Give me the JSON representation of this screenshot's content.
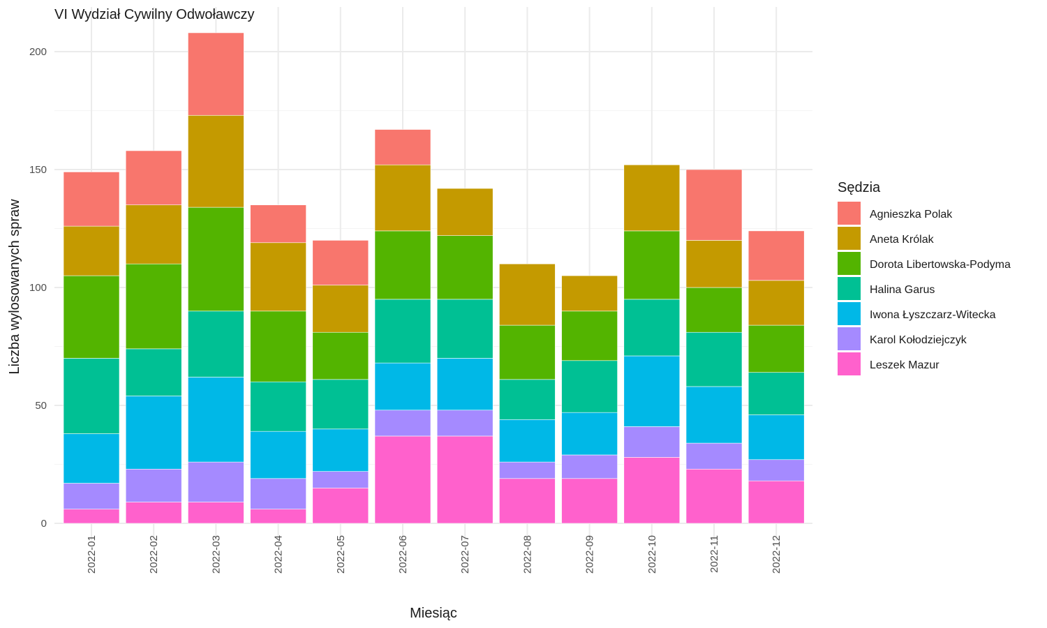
{
  "chart_data": {
    "type": "bar",
    "stacked": true,
    "title": "VI Wydział Cywilny Odwoławczy",
    "xlabel": "Miesiąc",
    "ylabel": "Liczba wylosowanych spraw",
    "ylim": [
      0,
      210
    ],
    "yticks": [
      0,
      50,
      100,
      150,
      200
    ],
    "grid": true,
    "legend_title": "Sędzia",
    "legend_position": "right",
    "categories": [
      "2022-01",
      "2022-02",
      "2022-03",
      "2022-04",
      "2022-05",
      "2022-06",
      "2022-07",
      "2022-08",
      "2022-09",
      "2022-10",
      "2022-11",
      "2022-12"
    ],
    "series": [
      {
        "name": "Leszek Mazur",
        "color": "#FF61CC",
        "values": [
          6,
          9,
          9,
          6,
          15,
          37,
          37,
          19,
          19,
          28,
          23,
          18
        ]
      },
      {
        "name": "Karol Kołodziejczyk",
        "color": "#A58AFF",
        "values": [
          11,
          14,
          17,
          13,
          7,
          11,
          11,
          7,
          10,
          13,
          11,
          9
        ]
      },
      {
        "name": "Iwona Łyszczarz-Witecka",
        "color": "#00B8E7",
        "values": [
          21,
          31,
          36,
          20,
          18,
          20,
          22,
          18,
          18,
          30,
          24,
          19
        ]
      },
      {
        "name": "Halina Garus",
        "color": "#00C094",
        "values": [
          32,
          20,
          28,
          21,
          21,
          27,
          25,
          17,
          22,
          24,
          23,
          18
        ]
      },
      {
        "name": "Dorota Libertowska-Podyma",
        "color": "#53B400",
        "values": [
          35,
          36,
          44,
          30,
          20,
          29,
          27,
          23,
          21,
          29,
          19,
          20
        ]
      },
      {
        "name": "Aneta Królak",
        "color": "#C49A00",
        "values": [
          21,
          25,
          39,
          29,
          20,
          28,
          20,
          26,
          15,
          28,
          20,
          19
        ]
      },
      {
        "name": "Agnieszka Polak",
        "color": "#F8766D",
        "values": [
          23,
          23,
          35,
          16,
          19,
          15,
          0,
          0,
          0,
          0,
          30,
          21
        ]
      }
    ],
    "legend_order": [
      "Agnieszka Polak",
      "Aneta Królak",
      "Dorota Libertowska-Podyma",
      "Halina Garus",
      "Iwona Łyszczarz-Witecka",
      "Karol Kołodziejczyk",
      "Leszek Mazur"
    ]
  }
}
